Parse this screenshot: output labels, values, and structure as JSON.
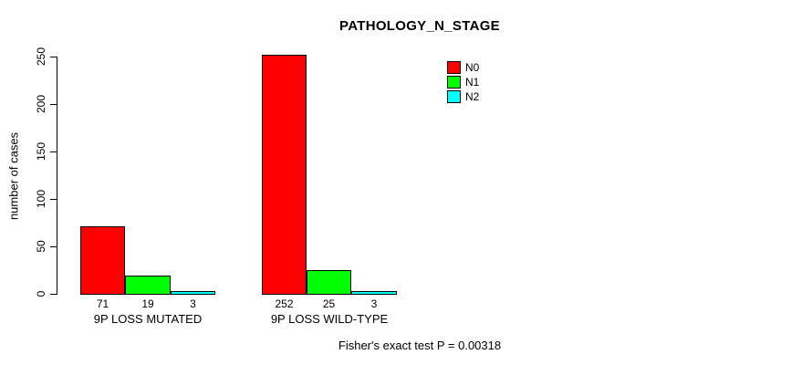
{
  "title": "PATHOLOGY_N_STAGE",
  "footer": "Fisher's exact test P = 0.00318",
  "chart_data": {
    "type": "bar",
    "title": "PATHOLOGY_N_STAGE",
    "xlabel": "",
    "ylabel": "number of cases",
    "ylim": [
      0,
      250
    ],
    "yticks": [
      0,
      50,
      100,
      150,
      200,
      250
    ],
    "grid": false,
    "legend_position": "top-right",
    "categories": [
      "9P LOSS MUTATED",
      "9P LOSS WILD-TYPE"
    ],
    "series": [
      {
        "name": "N0",
        "color": "#FF0000",
        "values": [
          71,
          252
        ]
      },
      {
        "name": "N1",
        "color": "#00FF00",
        "values": [
          19,
          25
        ]
      },
      {
        "name": "N2",
        "color": "#00FFFF",
        "values": [
          3,
          3
        ]
      }
    ],
    "bar_value_labels": [
      [
        71,
        19,
        3
      ],
      [
        252,
        25,
        3
      ]
    ],
    "annotation": "Fisher's exact test P = 0.00318",
    "axis_color": "#000000",
    "bar_border_color": "#000000",
    "background_color": "#FFFFFF"
  }
}
